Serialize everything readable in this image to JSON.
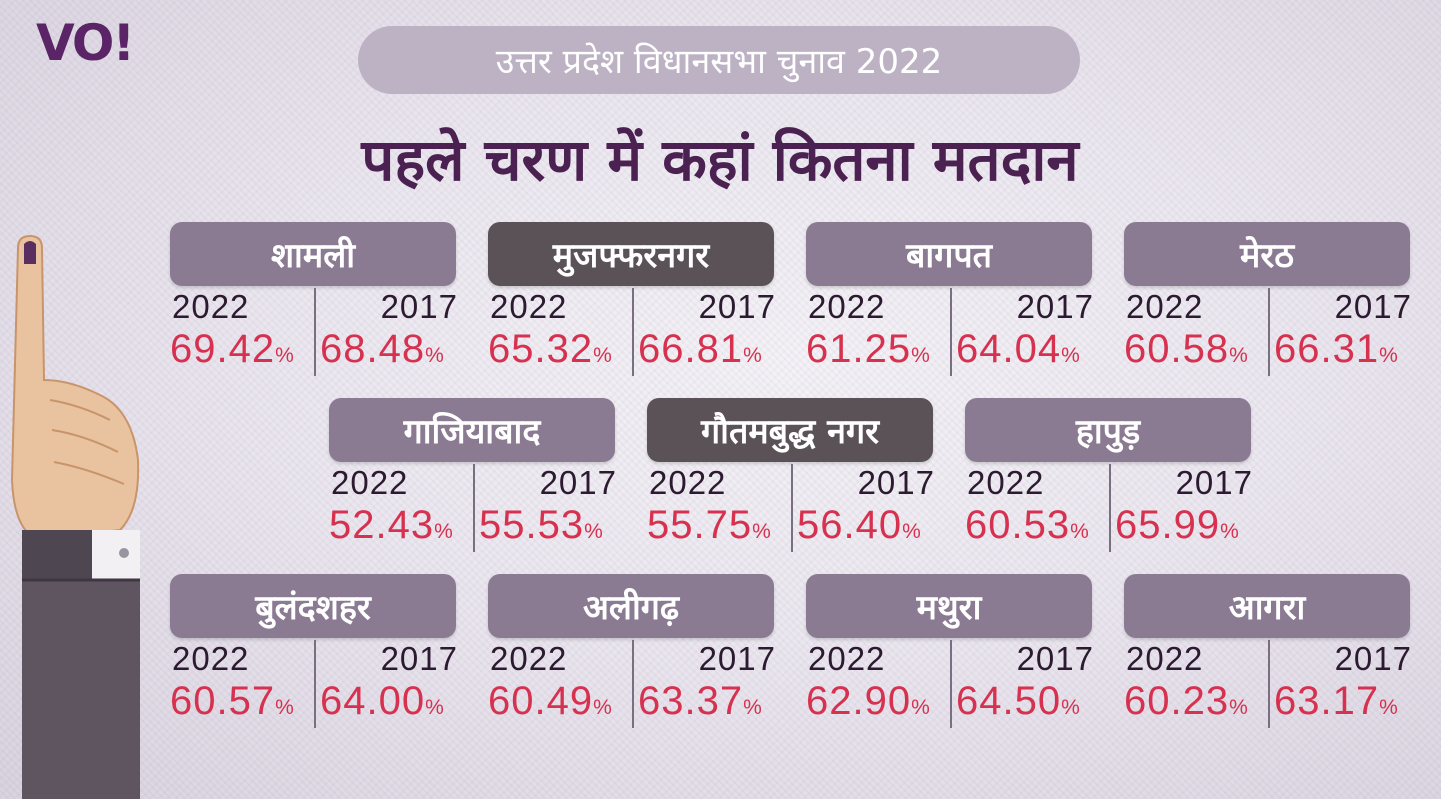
{
  "logo": "VO!",
  "header": {
    "election_title": "उत्तर प्रदेश विधानसभा चुनाव 2022",
    "headline": "पहले चरण में कहां कितना मतदान"
  },
  "colors": {
    "accent_percent": "#d6314f",
    "district_box": "#8a7b92",
    "district_box_dark": "#5a5256",
    "headline": "#4a2150"
  },
  "districts": [
    {
      "name": "शामली",
      "y2022_label": "2022",
      "y2017_label": "2017",
      "y2022": "69.42",
      "y2017": "68.48"
    },
    {
      "name": "मुजफ्फरनगर",
      "y2022_label": "2022",
      "y2017_label": "2017",
      "y2022": "65.32",
      "y2017": "66.81"
    },
    {
      "name": "बागपत",
      "y2022_label": "2022",
      "y2017_label": "2017",
      "y2022": "61.25",
      "y2017": "64.04"
    },
    {
      "name": "मेरठ",
      "y2022_label": "2022",
      "y2017_label": "2017",
      "y2022": "60.58",
      "y2017": "66.31"
    },
    {
      "name": "गाजियाबाद",
      "y2022_label": "2022",
      "y2017_label": "2017",
      "y2022": "52.43",
      "y2017": "55.53"
    },
    {
      "name": "गौतमबुद्ध नगर",
      "y2022_label": "2022",
      "y2017_label": "2017",
      "y2022": "55.75",
      "y2017": "56.40"
    },
    {
      "name": "हापुड़",
      "y2022_label": "2022",
      "y2017_label": "2017",
      "y2022": "60.53",
      "y2017": "65.99"
    },
    {
      "name": "बुलंदशहर",
      "y2022_label": "2022",
      "y2017_label": "2017",
      "y2022": "60.57",
      "y2017": "64.00"
    },
    {
      "name": "अलीगढ़",
      "y2022_label": "2022",
      "y2017_label": "2017",
      "y2022": "60.49",
      "y2017": "63.37"
    },
    {
      "name": "मथुरा",
      "y2022_label": "2022",
      "y2017_label": "2017",
      "y2022": "62.90",
      "y2017": "64.50"
    },
    {
      "name": "आगरा",
      "y2022_label": "2022",
      "y2017_label": "2017",
      "y2022": "60.23",
      "y2017": "63.17"
    }
  ],
  "percent_sign": "%"
}
